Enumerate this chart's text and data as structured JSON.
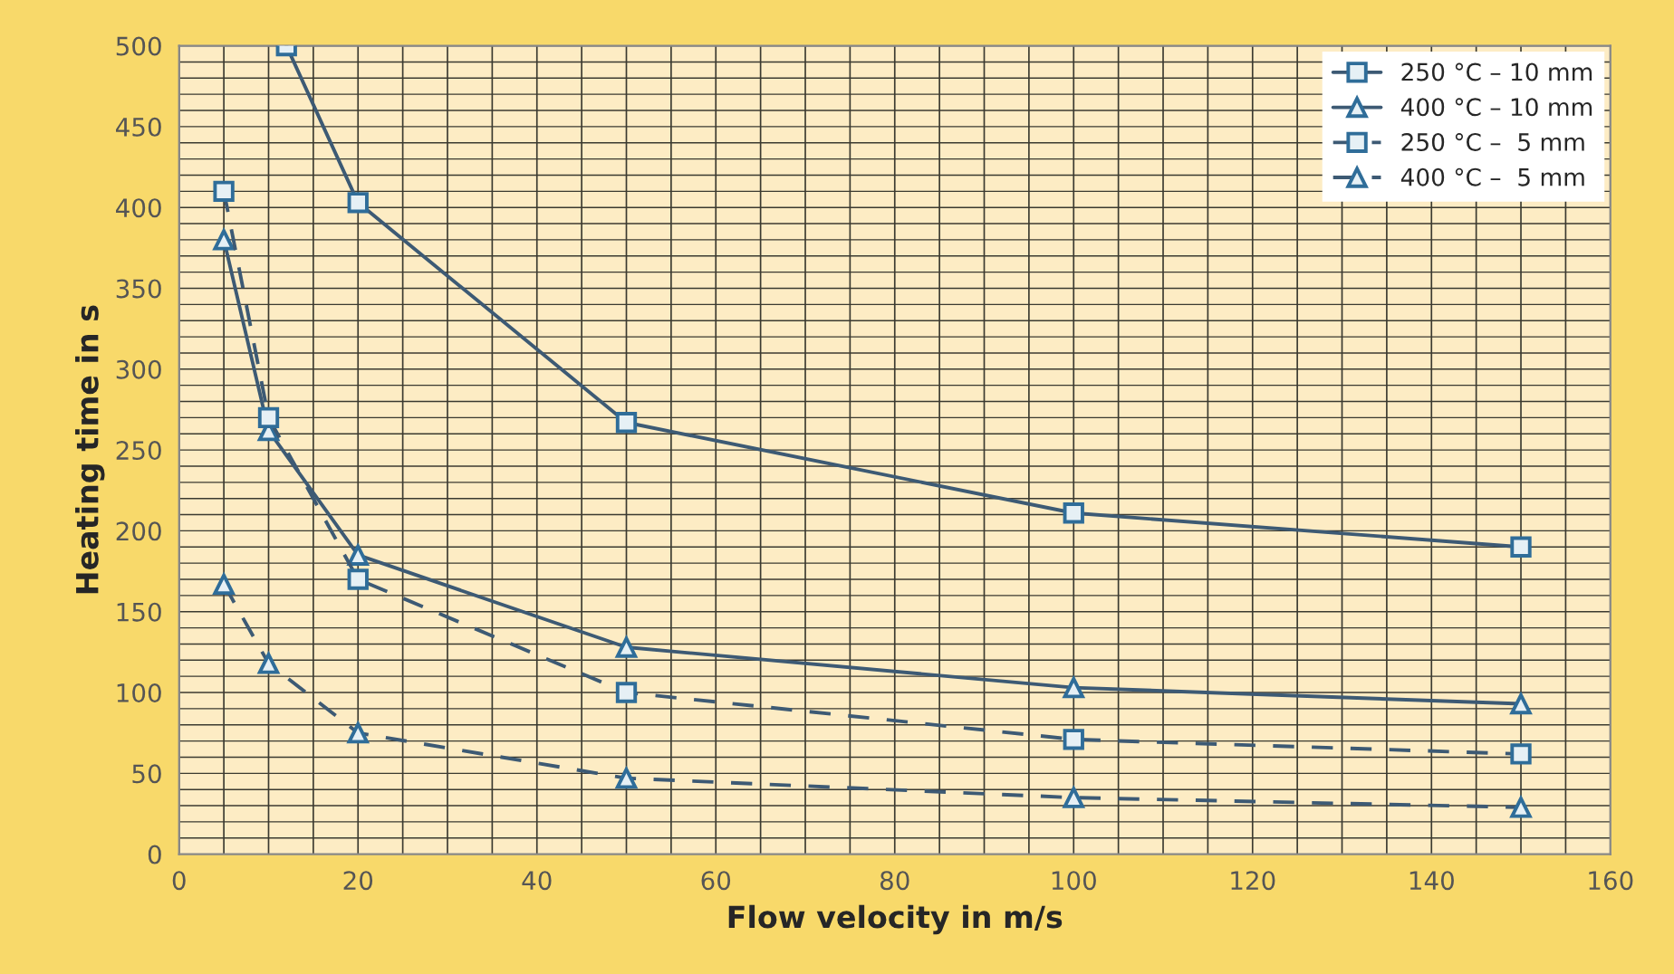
{
  "chart_data": {
    "type": "line",
    "xlabel": "Flow velocity in m/s",
    "ylabel": "Heating time in s",
    "xlim": [
      0,
      160
    ],
    "xticks": [
      0,
      20,
      40,
      60,
      80,
      100,
      120,
      140,
      160
    ],
    "ylim": [
      0,
      500
    ],
    "yticks": [
      0,
      50,
      100,
      150,
      200,
      250,
      300,
      350,
      400,
      450,
      500
    ],
    "grid": true,
    "legend": "top right",
    "series": [
      {
        "name": "250 °C – 10 mm",
        "color": "#3d5a74",
        "marker": "square",
        "line_style": "solid",
        "x": [
          12,
          20,
          50,
          100,
          150
        ],
        "values": [
          500,
          403,
          267,
          211,
          190
        ]
      },
      {
        "name": "400 °C – 10 mm",
        "color": "#3d5a74",
        "marker": "triangle",
        "line_style": "solid",
        "x": [
          5,
          10,
          20,
          50,
          100,
          150
        ],
        "values": [
          380,
          262,
          185,
          128,
          103,
          93
        ]
      },
      {
        "name": "250 °C –  5 mm",
        "color": "#3d5a74",
        "marker": "square",
        "line_style": "dashed",
        "x": [
          5,
          10,
          20,
          50,
          100,
          150
        ],
        "values": [
          410,
          270,
          170,
          100,
          71,
          62
        ]
      },
      {
        "name": "400 °C –  5 mm",
        "color": "#3d5a74",
        "marker": "triangle",
        "line_style": "dashed",
        "x": [
          5,
          10,
          20,
          50,
          100,
          150
        ],
        "values": [
          167,
          118,
          75,
          47,
          35,
          29
        ]
      }
    ]
  }
}
